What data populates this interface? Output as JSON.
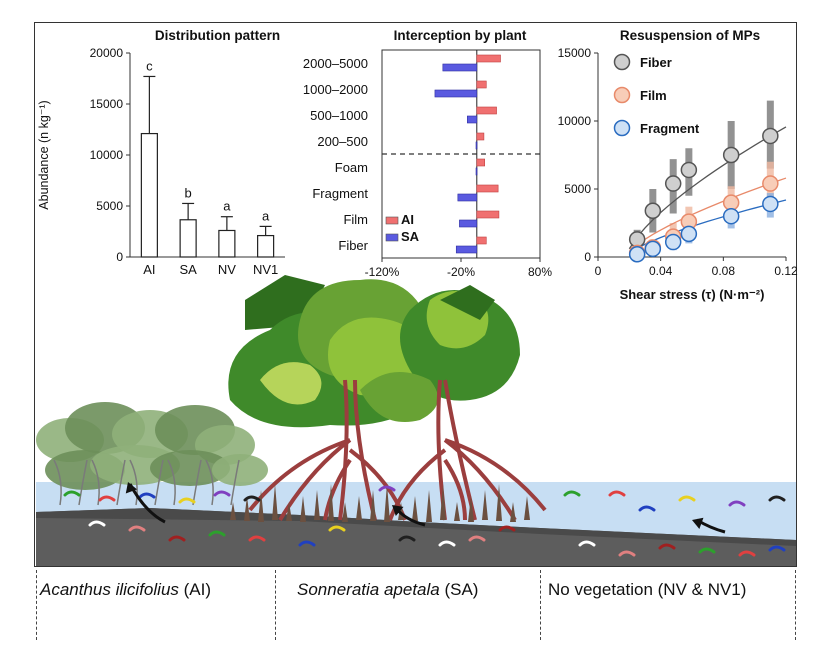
{
  "chart_data": [
    {
      "type": "bar",
      "title": "Distribution pattern",
      "ylabel": "Abundance (n kg⁻¹)",
      "categories": [
        "AI",
        "SA",
        "NV",
        "NV1"
      ],
      "values": [
        12100,
        3650,
        2600,
        2100
      ],
      "errors": [
        5600,
        1600,
        1350,
        900
      ],
      "letters": [
        "c",
        "b",
        "a",
        "a"
      ],
      "ylim": [
        0,
        20000
      ],
      "yticks": [
        "0",
        "5000",
        "10000",
        "15000",
        "20000"
      ]
    },
    {
      "type": "bar",
      "orientation": "horizontal",
      "title": "Interception by plant",
      "categories": [
        "2000–5000",
        "1000–2000",
        "500–1000",
        "200–500",
        "Foam",
        "Fragment",
        "Film",
        "Fiber"
      ],
      "series": [
        {
          "name": "AI",
          "color": "#f07070",
          "values": [
            30,
            12,
            25,
            9,
            10,
            27,
            28,
            12
          ]
        },
        {
          "name": "SA",
          "color": "#5a5ae0",
          "values": [
            -43,
            -53,
            -12,
            -1,
            -1,
            -24,
            -22,
            -26
          ]
        }
      ],
      "xlim": [
        -120,
        80
      ],
      "xticks": [
        "-120%",
        "-20%",
        "80%"
      ]
    },
    {
      "type": "scatter",
      "title": "Resuspension of MPs",
      "xlabel": "Shear stress (τ) (N·m⁻²)",
      "xlim": [
        0,
        0.12
      ],
      "ylim": [
        0,
        15000
      ],
      "xticks": [
        "0",
        "0.04",
        "0.08",
        "0.12"
      ],
      "yticks": [
        "0",
        "5000",
        "10000",
        "15000"
      ],
      "series": [
        {
          "name": "Fiber",
          "color": "#999999",
          "x": [
            0.025,
            0.035,
            0.048,
            0.058,
            0.085,
            0.11
          ],
          "y": [
            1300,
            3400,
            5400,
            6400,
            7500,
            8900
          ],
          "low": [
            400,
            1800,
            3200,
            4500,
            5000,
            6500
          ],
          "high": [
            2000,
            5000,
            7200,
            8000,
            10000,
            11500
          ]
        },
        {
          "name": "Film",
          "color": "#f4a88a",
          "x": [
            0.025,
            0.035,
            0.048,
            0.058,
            0.085,
            0.11
          ],
          "y": [
            300,
            700,
            1500,
            2600,
            4000,
            5400
          ],
          "low": [
            0,
            200,
            600,
            1500,
            2500,
            3500
          ],
          "high": [
            700,
            1300,
            2500,
            3700,
            5200,
            7000
          ]
        },
        {
          "name": "Fragment",
          "color": "#3a7fd0",
          "x": [
            0.025,
            0.035,
            0.048,
            0.058,
            0.085,
            0.11
          ],
          "y": [
            200,
            600,
            1100,
            1700,
            3000,
            3900
          ],
          "low": [
            0,
            200,
            500,
            1000,
            2100,
            2900
          ],
          "high": [
            500,
            1000,
            1700,
            2400,
            3700,
            4700
          ]
        }
      ]
    }
  ],
  "scene": {
    "labels": {
      "ai_name": "Acanthus ilicifolius",
      "ai_code": "(AI)",
      "sa_name": "Sonneratia apetala",
      "sa_code": "(SA)",
      "nv": "No vegetation (NV & NV1)"
    }
  }
}
